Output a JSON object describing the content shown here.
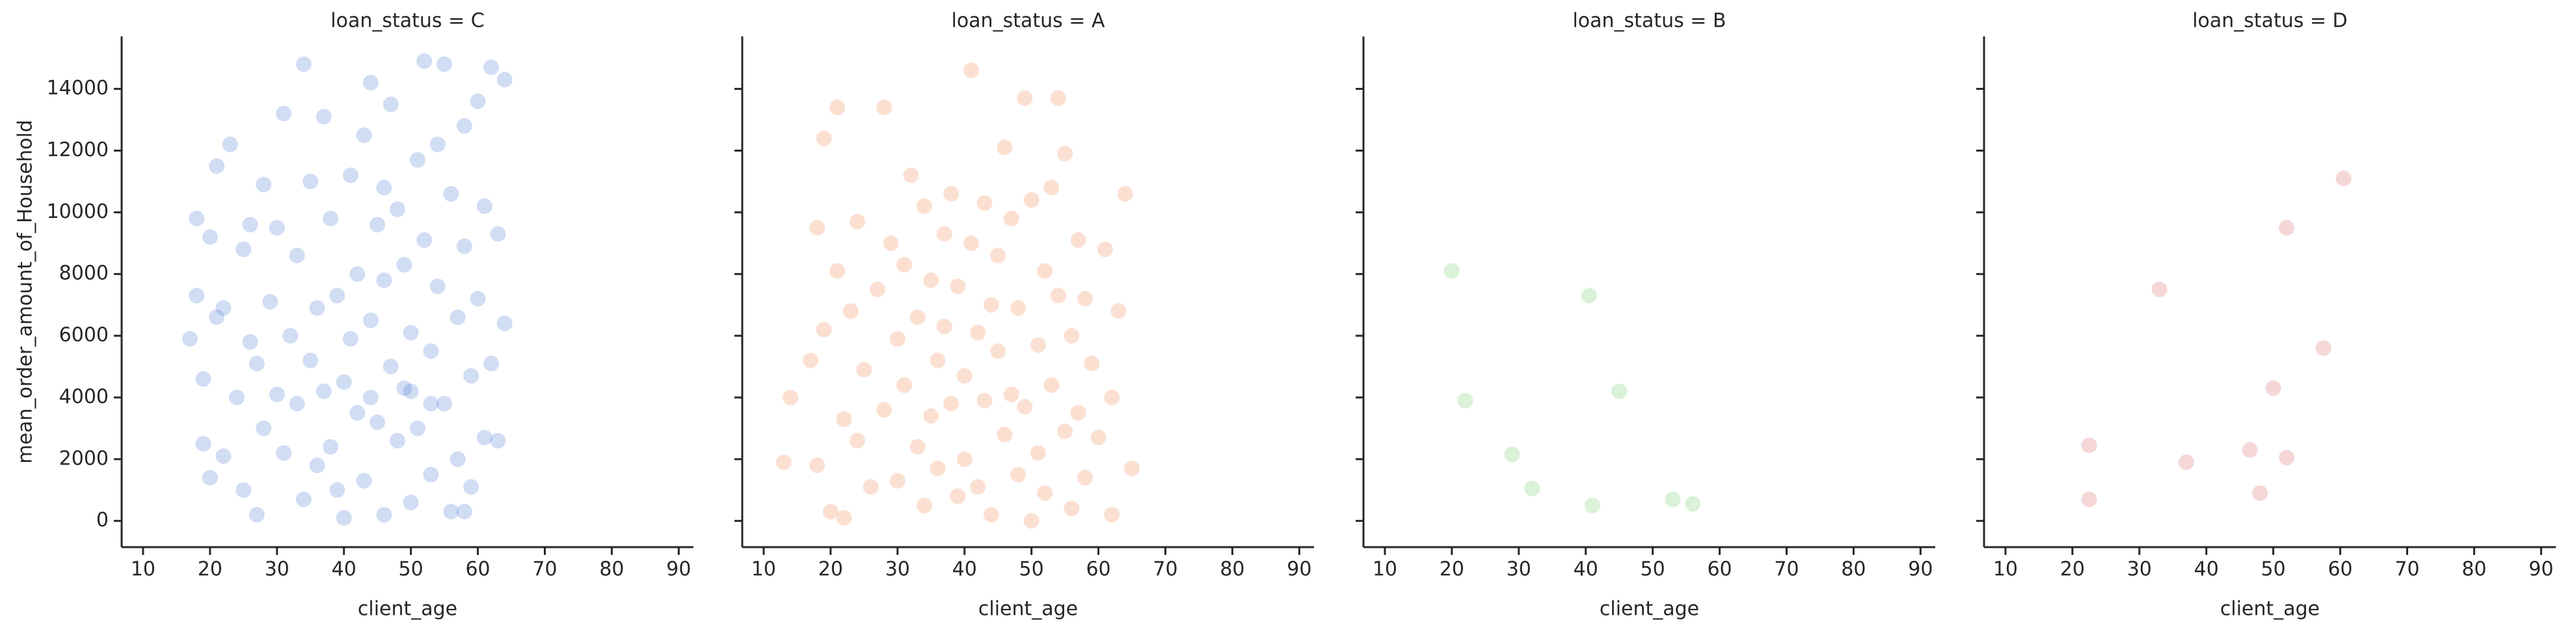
{
  "chart_data": [
    {
      "type": "scatter",
      "title": "loan_status = C",
      "x_label": "client_age",
      "y_label": "mean_order_amount_of_Household",
      "color": "#4878d0",
      "alpha": 0.25,
      "xlim": [
        6.8,
        92.2
      ],
      "ylim": [
        -850,
        15700
      ],
      "xticks": [
        10,
        20,
        30,
        40,
        50,
        60,
        70,
        80,
        90
      ],
      "yticks": [
        0,
        2000,
        4000,
        6000,
        8000,
        10000,
        12000,
        14000
      ],
      "x": [
        17,
        18,
        18,
        19,
        19,
        20,
        20,
        21,
        22,
        23,
        24,
        25,
        25,
        26,
        27,
        27,
        28,
        28,
        29,
        30,
        31,
        31,
        32,
        33,
        33,
        34,
        34,
        35,
        35,
        36,
        36,
        37,
        37,
        38,
        38,
        39,
        40,
        40,
        41,
        41,
        42,
        42,
        43,
        43,
        44,
        44,
        45,
        45,
        46,
        46,
        47,
        47,
        48,
        48,
        49,
        49,
        50,
        50,
        51,
        51,
        52,
        52,
        53,
        53,
        54,
        54,
        55,
        55,
        56,
        56,
        57,
        57,
        58,
        58,
        59,
        59,
        60,
        60,
        61,
        61,
        62,
        62,
        63,
        63,
        64,
        64,
        22,
        26,
        30,
        39,
        44,
        50,
        53,
        46,
        21,
        58
      ],
      "y": [
        5900,
        9800,
        7300,
        4600,
        2500,
        1400,
        9200,
        11500,
        6900,
        12200,
        4000,
        1000,
        8800,
        5800,
        200,
        5100,
        10900,
        3000,
        7100,
        9500,
        2200,
        13200,
        6000,
        8600,
        3800,
        14800,
        700,
        5200,
        11000,
        6900,
        1800,
        13100,
        4200,
        9800,
        2400,
        7300,
        100,
        4500,
        11200,
        5900,
        8000,
        3500,
        12500,
        1300,
        14200,
        6500,
        3200,
        9600,
        200,
        7800,
        5000,
        13500,
        2600,
        10100,
        4300,
        8300,
        600,
        6100,
        11700,
        3000,
        14900,
        9100,
        1500,
        5500,
        12200,
        7600,
        14800,
        3800,
        300,
        10600,
        6600,
        2000,
        12800,
        8900,
        4700,
        1100,
        13600,
        7200,
        2700,
        10200,
        14700,
        5100,
        2600,
        9300,
        14300,
        6400,
        2100,
        9600,
        4100,
        1000,
        4000,
        4200,
        3800,
        10800,
        6600,
        300
      ]
    },
    {
      "type": "scatter",
      "title": "loan_status = A",
      "x_label": "client_age",
      "color": "#ee854a",
      "alpha": 0.25,
      "xlim": [
        6.8,
        92.2
      ],
      "ylim": [
        -850,
        15700
      ],
      "xticks": [
        10,
        20,
        30,
        40,
        50,
        60,
        70,
        80,
        90
      ],
      "yticks": [
        0,
        2000,
        4000,
        6000,
        8000,
        10000,
        12000,
        14000
      ],
      "x": [
        13,
        14,
        17,
        18,
        18,
        19,
        19,
        20,
        21,
        21,
        22,
        22,
        23,
        24,
        24,
        25,
        26,
        27,
        28,
        28,
        29,
        30,
        30,
        31,
        31,
        32,
        33,
        33,
        34,
        34,
        35,
        35,
        36,
        36,
        37,
        37,
        38,
        38,
        39,
        39,
        40,
        40,
        41,
        41,
        42,
        42,
        43,
        43,
        44,
        44,
        45,
        45,
        46,
        46,
        47,
        47,
        48,
        48,
        49,
        49,
        50,
        50,
        51,
        51,
        52,
        52,
        53,
        53,
        54,
        54,
        55,
        55,
        56,
        56,
        57,
        57,
        58,
        58,
        59,
        60,
        61,
        62,
        62,
        63,
        64,
        65
      ],
      "y": [
        1900,
        4000,
        5200,
        9500,
        1800,
        12400,
        6200,
        300,
        13400,
        8100,
        3300,
        100,
        6800,
        9700,
        2600,
        4900,
        1100,
        7500,
        13400,
        3600,
        9000,
        5900,
        1300,
        8300,
        4400,
        11200,
        2400,
        6600,
        10200,
        500,
        7800,
        3400,
        5200,
        1700,
        9300,
        6300,
        3800,
        10600,
        800,
        7600,
        4700,
        2000,
        14600,
        9000,
        6100,
        1100,
        10300,
        3900,
        7000,
        200,
        8600,
        5500,
        2800,
        12100,
        4100,
        9800,
        1500,
        6900,
        13700,
        3700,
        0,
        10400,
        5700,
        2200,
        8100,
        900,
        4400,
        10800,
        13700,
        7300,
        11900,
        2900,
        6000,
        400,
        3500,
        9100,
        7200,
        1400,
        5100,
        2700,
        8800,
        4000,
        200,
        6800,
        10600,
        1700
      ]
    },
    {
      "type": "scatter",
      "title": "loan_status = B",
      "x_label": "client_age",
      "color": "#6acc64",
      "alpha": 0.25,
      "xlim": [
        6.8,
        92.2
      ],
      "ylim": [
        -850,
        15700
      ],
      "xticks": [
        10,
        20,
        30,
        40,
        50,
        60,
        70,
        80,
        90
      ],
      "yticks": [
        0,
        2000,
        4000,
        6000,
        8000,
        10000,
        12000,
        14000
      ],
      "x": [
        20,
        22,
        29,
        32,
        40.5,
        41,
        45,
        53,
        56
      ],
      "y": [
        8100,
        3900,
        2150,
        1050,
        7300,
        500,
        4200,
        700,
        550
      ]
    },
    {
      "type": "scatter",
      "title": "loan_status = D",
      "x_label": "client_age",
      "color": "#d65f5f",
      "alpha": 0.25,
      "xlim": [
        6.8,
        92.2
      ],
      "ylim": [
        -850,
        15700
      ],
      "xticks": [
        10,
        20,
        30,
        40,
        50,
        60,
        70,
        80,
        90
      ],
      "yticks": [
        0,
        2000,
        4000,
        6000,
        8000,
        10000,
        12000,
        14000
      ],
      "x": [
        22.5,
        22.5,
        33,
        37,
        46.5,
        48,
        50,
        52,
        52,
        57.5,
        60.5
      ],
      "y": [
        2450,
        700,
        7500,
        1900,
        2300,
        900,
        4300,
        9500,
        2050,
        5600,
        11100
      ]
    }
  ]
}
